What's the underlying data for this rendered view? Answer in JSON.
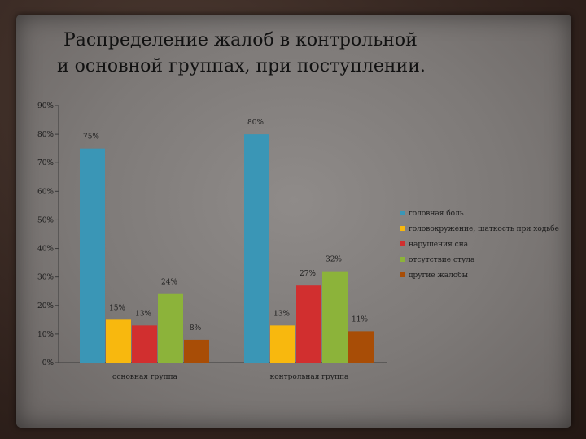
{
  "slide": {
    "title_line1": "Распределение жалоб в контрольной",
    "title_line2": "и основной группах, при поступлении."
  },
  "chart_data": {
    "type": "bar",
    "categories": [
      "основная группа",
      "контрольная группа"
    ],
    "series": [
      {
        "name": "головная боль",
        "color": "#3a96b6",
        "values": [
          75,
          80
        ],
        "labels": [
          "75%",
          "80%"
        ]
      },
      {
        "name": "головокружение, шаткость при ходьбе",
        "color": "#f8b80e",
        "values": [
          15,
          13
        ],
        "labels": [
          "15%",
          "13%"
        ]
      },
      {
        "name": "нарушения сна",
        "color": "#d12f2f",
        "values": [
          13,
          27
        ],
        "labels": [
          "13%",
          "27%"
        ]
      },
      {
        "name": "отсутствие стула",
        "color": "#8cb33a",
        "values": [
          24,
          32
        ],
        "labels": [
          "24%",
          "32%"
        ]
      },
      {
        "name": "другие жалобы",
        "color": "#a84d06",
        "values": [
          8,
          11
        ],
        "labels": [
          "8%",
          "11%"
        ]
      }
    ],
    "yticks": [
      "0%",
      "10%",
      "20%",
      "30%",
      "40%",
      "50%",
      "60%",
      "70%",
      "80%",
      "90%"
    ],
    "ylim": [
      0,
      90
    ],
    "grid": false,
    "legend_position": "right"
  }
}
